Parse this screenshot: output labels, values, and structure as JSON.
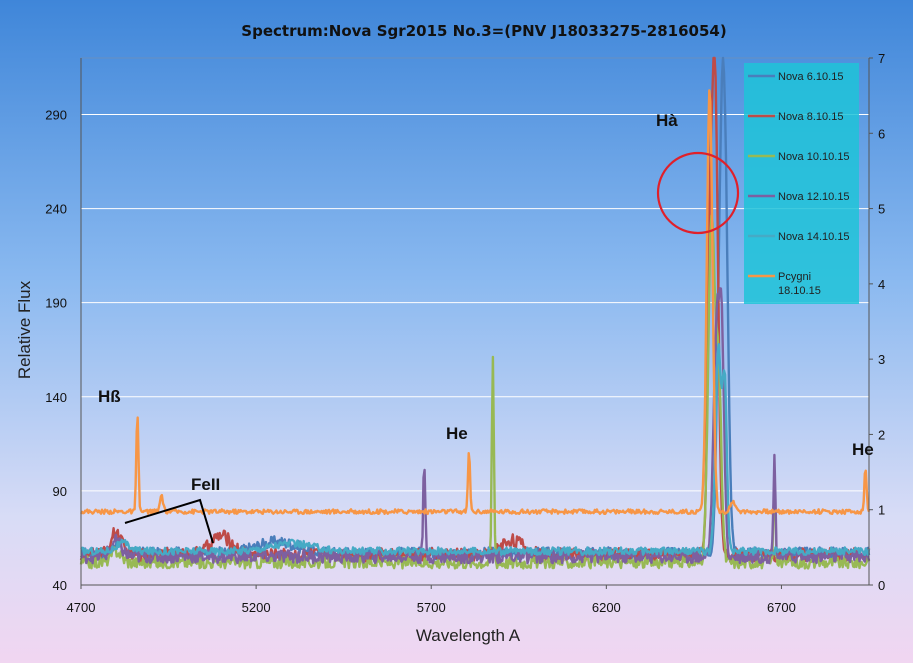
{
  "chart_data": {
    "type": "line",
    "title": "Spectrum:Nova Sgr2015 No.3=(PNV J18033275-2816054)",
    "xlabel": "Wavelength A",
    "ylabel": "Relative Flux",
    "xlim": [
      4700,
      6950
    ],
    "ylim": [
      40,
      320
    ],
    "y2lim": [
      0,
      7
    ],
    "x_ticks": [
      "4700",
      "5200",
      "5700",
      "6200",
      "6700"
    ],
    "y_ticks": [
      "40",
      "90",
      "140",
      "190",
      "240",
      "290"
    ],
    "y2_ticks": [
      "0",
      "1",
      "2",
      "3",
      "4",
      "5",
      "6",
      "7"
    ],
    "grid": "horizontal",
    "legend_position": "top-right",
    "annotations": [
      {
        "id": "hbeta",
        "text": "Hß"
      },
      {
        "id": "feii",
        "text": "FeII"
      },
      {
        "id": "he1",
        "text": "He"
      },
      {
        "id": "halpha",
        "text": "Hà"
      },
      {
        "id": "he2",
        "text": "He"
      }
    ],
    "series": [
      {
        "name": "Nova 6.10.15",
        "color": "#4a7ebb",
        "axis": "right",
        "base": 0.42,
        "noise": 0.08,
        "peaks": [
          [
            4800,
            0.12,
            15
          ],
          [
            5260,
            0.15,
            60
          ],
          [
            6528,
            4.5,
            10
          ],
          [
            6540,
            3.5,
            9
          ]
        ]
      },
      {
        "name": "Nova 8.10.15",
        "color": "#be4b48",
        "axis": "right",
        "base": 0.4,
        "noise": 0.09,
        "peaks": [
          [
            4800,
            0.3,
            15
          ],
          [
            5100,
            0.25,
            30
          ],
          [
            5930,
            0.2,
            30
          ],
          [
            6510,
            6.3,
            9
          ],
          [
            6495,
            3.0,
            7
          ]
        ]
      },
      {
        "name": "Nova 10.10.15",
        "color": "#98b954",
        "axis": "right",
        "base": 0.3,
        "noise": 0.08,
        "peaks": [
          [
            4800,
            0.15,
            15
          ],
          [
            5876,
            2.7,
            3
          ],
          [
            6500,
            4.5,
            9
          ],
          [
            6520,
            2.5,
            8
          ],
          [
            6680,
            1.0,
            3
          ]
        ]
      },
      {
        "name": "Nova 12.10.15",
        "color": "#7d60a0",
        "axis": "right",
        "base": 0.38,
        "noise": 0.09,
        "peaks": [
          [
            4800,
            0.2,
            15
          ],
          [
            5680,
            1.2,
            3
          ],
          [
            6515,
            3.0,
            9
          ],
          [
            6530,
            2.5,
            7
          ],
          [
            6680,
            1.3,
            3
          ]
        ]
      },
      {
        "name": "Nova 14.10.15",
        "color": "#46aac5",
        "axis": "right",
        "base": 0.45,
        "noise": 0.05,
        "peaks": [
          [
            4820,
            0.1,
            20
          ],
          [
            5300,
            0.1,
            60
          ],
          [
            6520,
            2.7,
            8
          ],
          [
            6538,
            2.2,
            6
          ]
        ]
      },
      {
        "name": "Pcygni\n18.10.15",
        "color": "#f79646",
        "axis": "left",
        "base": 79,
        "noise": 1.2,
        "peaks": [
          [
            4861,
            52,
            3
          ],
          [
            4930,
            9,
            4
          ],
          [
            5808,
            32,
            3
          ],
          [
            6495,
            225,
            8
          ],
          [
            6563,
            5,
            8
          ],
          [
            6940,
            24,
            3
          ]
        ]
      }
    ]
  }
}
